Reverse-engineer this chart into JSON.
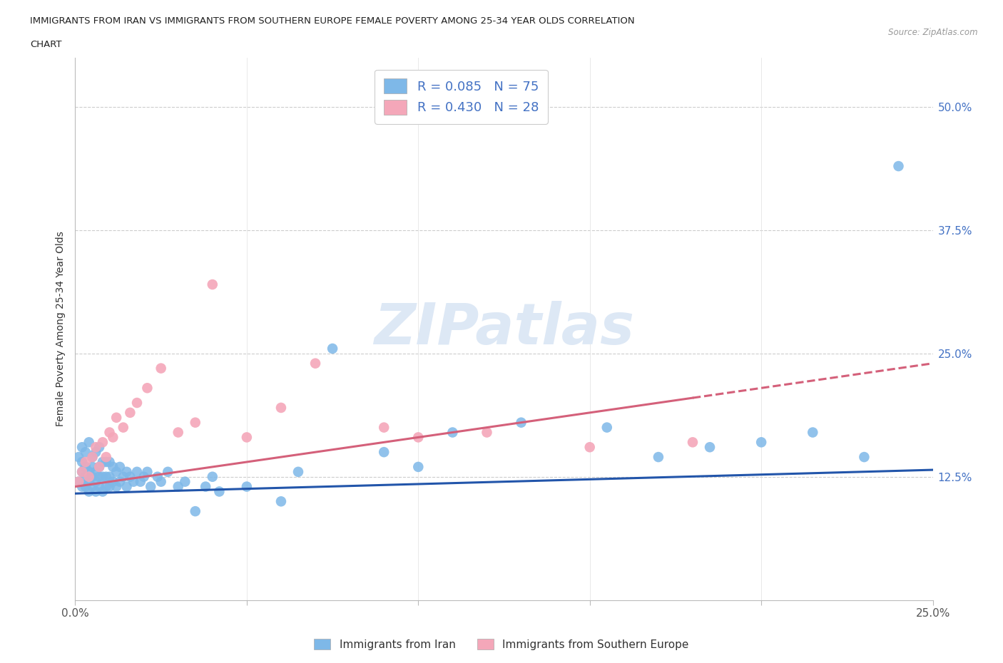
{
  "title_line1": "IMMIGRANTS FROM IRAN VS IMMIGRANTS FROM SOUTHERN EUROPE FEMALE POVERTY AMONG 25-34 YEAR OLDS CORRELATION",
  "title_line2": "CHART",
  "source": "Source: ZipAtlas.com",
  "ylabel": "Female Poverty Among 25-34 Year Olds",
  "xlim": [
    0.0,
    0.25
  ],
  "ylim": [
    0.0,
    0.55
  ],
  "iran_R": 0.085,
  "iran_N": 75,
  "southern_R": 0.43,
  "southern_N": 28,
  "iran_color": "#7eb8e8",
  "southern_color": "#f4a7b9",
  "iran_line_color": "#2255aa",
  "southern_line_color": "#d4607a",
  "legend_label_iran": "Immigrants from Iran",
  "legend_label_southern": "Immigrants from Southern Europe",
  "watermark": "ZIPatlas",
  "iran_line_start_y": 0.108,
  "iran_line_end_y": 0.132,
  "southern_line_start_y": 0.115,
  "southern_line_end_y": 0.24,
  "iran_x": [
    0.001,
    0.001,
    0.002,
    0.002,
    0.002,
    0.002,
    0.003,
    0.003,
    0.003,
    0.003,
    0.004,
    0.004,
    0.004,
    0.004,
    0.005,
    0.005,
    0.005,
    0.005,
    0.006,
    0.006,
    0.006,
    0.006,
    0.007,
    0.007,
    0.007,
    0.007,
    0.008,
    0.008,
    0.008,
    0.009,
    0.009,
    0.009,
    0.01,
    0.01,
    0.01,
    0.011,
    0.011,
    0.012,
    0.012,
    0.013,
    0.013,
    0.014,
    0.015,
    0.015,
    0.016,
    0.017,
    0.018,
    0.019,
    0.02,
    0.021,
    0.022,
    0.024,
    0.025,
    0.027,
    0.03,
    0.032,
    0.035,
    0.038,
    0.04,
    0.042,
    0.05,
    0.06,
    0.065,
    0.075,
    0.09,
    0.1,
    0.11,
    0.13,
    0.155,
    0.17,
    0.185,
    0.2,
    0.215,
    0.23,
    0.24
  ],
  "iran_y": [
    0.12,
    0.145,
    0.115,
    0.13,
    0.14,
    0.155,
    0.115,
    0.125,
    0.135,
    0.15,
    0.11,
    0.12,
    0.13,
    0.16,
    0.115,
    0.125,
    0.135,
    0.145,
    0.11,
    0.12,
    0.13,
    0.15,
    0.115,
    0.125,
    0.135,
    0.155,
    0.11,
    0.125,
    0.14,
    0.115,
    0.125,
    0.14,
    0.115,
    0.125,
    0.14,
    0.12,
    0.135,
    0.115,
    0.13,
    0.12,
    0.135,
    0.125,
    0.115,
    0.13,
    0.125,
    0.12,
    0.13,
    0.12,
    0.125,
    0.13,
    0.115,
    0.125,
    0.12,
    0.13,
    0.115,
    0.12,
    0.09,
    0.115,
    0.125,
    0.11,
    0.115,
    0.1,
    0.13,
    0.255,
    0.15,
    0.135,
    0.17,
    0.18,
    0.175,
    0.145,
    0.155,
    0.16,
    0.17,
    0.145,
    0.44
  ],
  "southern_x": [
    0.001,
    0.002,
    0.003,
    0.004,
    0.005,
    0.006,
    0.007,
    0.008,
    0.009,
    0.01,
    0.011,
    0.012,
    0.014,
    0.016,
    0.018,
    0.021,
    0.025,
    0.03,
    0.035,
    0.04,
    0.05,
    0.06,
    0.07,
    0.09,
    0.1,
    0.12,
    0.15,
    0.18
  ],
  "southern_y": [
    0.12,
    0.13,
    0.14,
    0.125,
    0.145,
    0.155,
    0.135,
    0.16,
    0.145,
    0.17,
    0.165,
    0.185,
    0.175,
    0.19,
    0.2,
    0.215,
    0.235,
    0.17,
    0.18,
    0.32,
    0.165,
    0.195,
    0.24,
    0.175,
    0.165,
    0.17,
    0.155,
    0.16
  ]
}
